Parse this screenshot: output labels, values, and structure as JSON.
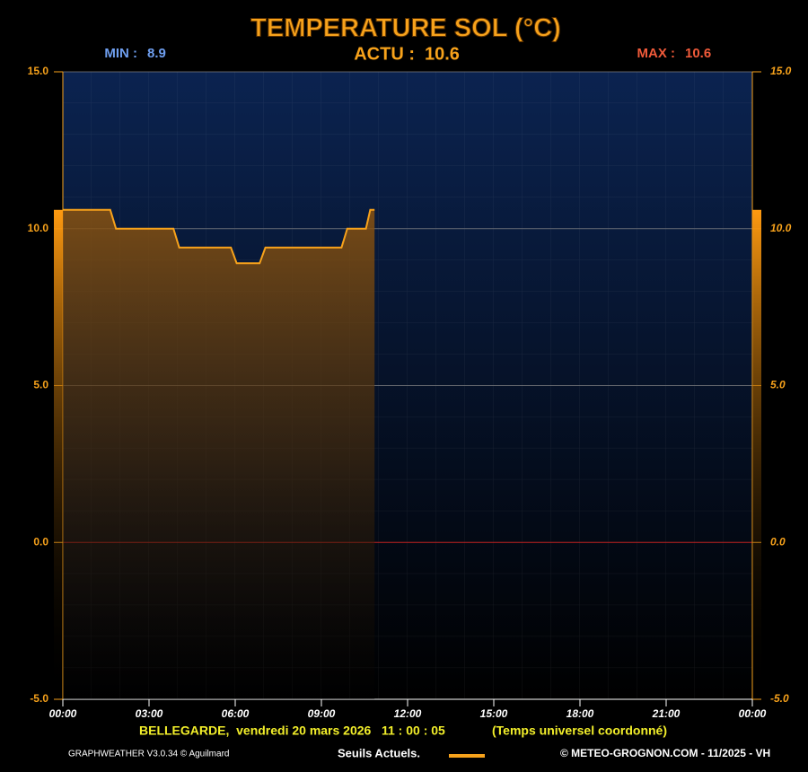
{
  "chart_data": {
    "type": "line",
    "title": "TEMPERATURE SOL (°C)",
    "stats": {
      "min_label": "MIN :",
      "min": 8.9,
      "actu_label": "ACTU :",
      "actu": 10.6,
      "max_label": "MAX :",
      "max": 10.6
    },
    "x": [
      0,
      1.65,
      1.85,
      3.85,
      4.05,
      5.85,
      6.05,
      6.85,
      7.05,
      9.7,
      9.9,
      10.55,
      10.7,
      10.85
    ],
    "values": [
      10.6,
      10.6,
      10.0,
      10.0,
      9.4,
      9.4,
      8.9,
      8.9,
      9.4,
      9.4,
      10.0,
      10.0,
      10.6,
      10.6
    ],
    "color": "#f7a21b",
    "xlim": [
      0,
      24
    ],
    "xticks": [
      {
        "value": 0,
        "label": "00:00"
      },
      {
        "value": 3,
        "label": "03:00"
      },
      {
        "value": 6,
        "label": "06:00"
      },
      {
        "value": 9,
        "label": "09:00"
      },
      {
        "value": 12,
        "label": "12:00"
      },
      {
        "value": 15,
        "label": "15:00"
      },
      {
        "value": 18,
        "label": "18:00"
      },
      {
        "value": 21,
        "label": "21:00"
      },
      {
        "value": 24,
        "label": "00:00"
      }
    ],
    "ylim": [
      -5,
      15
    ],
    "yticks": [
      {
        "value": -5,
        "label": "-5.0"
      },
      {
        "value": 0,
        "label": "0.0"
      },
      {
        "value": 5,
        "label": "5.0"
      },
      {
        "value": 10,
        "label": "10.0"
      },
      {
        "value": 15,
        "label": "15.0"
      }
    ],
    "grid": true,
    "station": "BELLEGARDE,  vendredi 20 mars 2026   11 : 00 : 05",
    "time_note": "(Temps universel coordonné)",
    "software": "GRAPHWEATHER V3.0.34 © Aguilmard",
    "legend_label": "Seuils Actuels.",
    "copyright": "© METEO-GROGNON.COM - 11/2025 - VH"
  }
}
